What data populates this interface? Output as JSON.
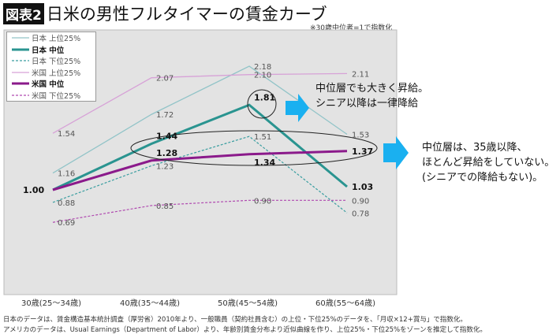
{
  "header": {
    "badge": "図表2",
    "title": "日米の男性フルタイマーの賃金カーブ",
    "note": "※30歳中位者=1で指数化"
  },
  "chart_data": {
    "type": "line",
    "categories": [
      "30歳(25～34歳)",
      "40歳(35～44歳)",
      "50歳(45～54歳)",
      "60歳(55～64歳)"
    ],
    "legend_position": "top-left",
    "grid": false,
    "series": [
      {
        "name": "日本 上位25%",
        "values": [
          1.16,
          1.72,
          2.18,
          1.53
        ],
        "color": "#92c4c8",
        "style": "thin"
      },
      {
        "name": "日本 中位",
        "values": [
          1.0,
          1.44,
          1.81,
          1.03
        ],
        "color": "#2a9490",
        "style": "thick"
      },
      {
        "name": "日本 下位25%",
        "values": [
          0.88,
          1.23,
          1.51,
          0.78
        ],
        "color": "#3a9ea0",
        "style": "dashed"
      },
      {
        "name": "米国 上位25%",
        "values": [
          1.54,
          2.07,
          2.1,
          2.11
        ],
        "color": "#d7a2d7",
        "style": "thin"
      },
      {
        "name": "米国 中位",
        "values": [
          1.0,
          1.28,
          1.34,
          1.37
        ],
        "color": "#8b1a8b",
        "style": "thick"
      },
      {
        "name": "米国 下位25%",
        "values": [
          0.69,
          0.85,
          0.9,
          0.9
        ],
        "color": "#b04ab0",
        "style": "dashed"
      }
    ]
  },
  "callouts": {
    "a": "中位層でも大きく昇給。\nシニア以降は一律降給",
    "b": "中位層は、35歳以降、\nほとんど昇給をしていない。\n(シニアでの降給もない)。",
    "arrow_color": "#1ab0f0"
  },
  "footer": {
    "line1": "日本のデータは、賃金構造基本統計調査（厚労省）2010年より、一般職員（契約社員含む）の上位・下位25%のデータを、「月収×12+賞与」で指数化。",
    "line2": "アメリカのデータは、Usual Earnings（Department of Labor）より、年齢別賃金分布より近似曲線を作り、上位25%・下位25%をゾーンを推定して指数化。"
  }
}
